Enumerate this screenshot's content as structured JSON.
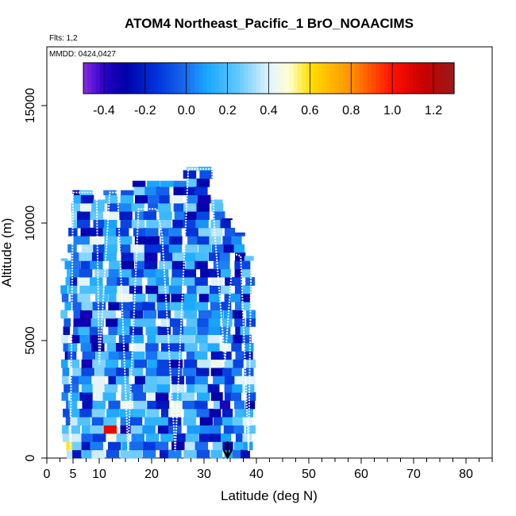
{
  "chart_data": {
    "type": "heatmap",
    "title": "ATOM4 Northeast_Pacific_1 BrO_NOAACIMS",
    "flights_label": "Flts: 1,2",
    "date_label": "MMDD: 0424,0427",
    "xlabel": "Latitude (deg N)",
    "ylabel": "Altitude (m)",
    "xlim": [
      0,
      85
    ],
    "ylim": [
      0,
      17500
    ],
    "x_ticks": [
      0,
      5,
      10,
      20,
      30,
      40,
      50,
      60,
      70,
      80
    ],
    "x_minor_ticks": [
      2.5,
      7.5,
      12.5,
      15,
      17.5,
      22.5,
      25,
      27.5,
      32.5,
      35,
      37.5,
      42.5,
      45,
      47.5,
      52.5,
      55,
      57.5,
      62.5,
      65,
      67.5,
      72.5,
      75,
      77.5,
      82.5,
      85
    ],
    "y_ticks": [
      0,
      5000,
      10000,
      15000
    ],
    "colorbar": {
      "min": -0.5,
      "max": 1.3,
      "ticks": [
        -0.4,
        -0.2,
        0.0,
        0.2,
        0.4,
        0.6,
        0.8,
        1.0,
        1.2
      ],
      "tick_labels": [
        "-0.4",
        "-0.2",
        "0.0",
        "0.2",
        "0.4",
        "0.6",
        "0.8",
        "1.0",
        "1.2"
      ],
      "stops": [
        {
          "value": -0.5,
          "color": "#8a2be2"
        },
        {
          "value": -0.4,
          "color": "#2a00c8"
        },
        {
          "value": -0.3,
          "color": "#0000a8"
        },
        {
          "value": -0.15,
          "color": "#0030d8"
        },
        {
          "value": 0.0,
          "color": "#1a6cf0"
        },
        {
          "value": 0.1,
          "color": "#18a8ff"
        },
        {
          "value": 0.25,
          "color": "#60c8ff"
        },
        {
          "value": 0.4,
          "color": "#e0f2ff"
        },
        {
          "value": 0.5,
          "color": "#ffffd0"
        },
        {
          "value": 0.6,
          "color": "#ffe000"
        },
        {
          "value": 0.8,
          "color": "#ff9000"
        },
        {
          "value": 1.0,
          "color": "#ff1000"
        },
        {
          "value": 1.15,
          "color": "#c80000"
        },
        {
          "value": 1.3,
          "color": "#9a1a1a"
        }
      ]
    },
    "marker": {
      "lat": 34.5,
      "label": "arrow"
    },
    "columns": [
      {
        "lat": 4.0,
        "bottom": 0,
        "top": 8500
      },
      {
        "lat": 5.0,
        "bottom": 0,
        "top": 11400
      },
      {
        "lat": 7.5,
        "bottom": 0,
        "top": 11400
      },
      {
        "lat": 10.0,
        "bottom": 0,
        "top": 11000
      },
      {
        "lat": 12.5,
        "bottom": 0,
        "top": 11400
      },
      {
        "lat": 15.0,
        "bottom": 0,
        "top": 11400
      },
      {
        "lat": 17.5,
        "bottom": 0,
        "top": 11800
      },
      {
        "lat": 20.0,
        "bottom": 0,
        "top": 11800
      },
      {
        "lat": 22.5,
        "bottom": 0,
        "top": 11800
      },
      {
        "lat": 25.0,
        "bottom": 0,
        "top": 11800
      },
      {
        "lat": 27.5,
        "bottom": 0,
        "top": 12400
      },
      {
        "lat": 30.0,
        "bottom": 0,
        "top": 12400
      },
      {
        "lat": 32.5,
        "bottom": 0,
        "top": 11000
      },
      {
        "lat": 34.5,
        "bottom": 0,
        "top": 10200
      },
      {
        "lat": 36.5,
        "bottom": 0,
        "top": 9600
      },
      {
        "lat": 38.5,
        "bottom": 0,
        "top": 8600
      }
    ],
    "hotspots": [
      {
        "lat": 12.5,
        "alt": 1200,
        "value": 1.1
      },
      {
        "lat": 10.0,
        "alt": 3200,
        "value": 0.55
      },
      {
        "lat": 4.0,
        "alt": 500,
        "value": 0.6
      },
      {
        "lat": 23.0,
        "alt": 6200,
        "value": -0.45
      },
      {
        "lat": 34.5,
        "alt": 2200,
        "value": -0.45
      },
      {
        "lat": 33.5,
        "alt": 8700,
        "value": -0.3
      },
      {
        "lat": 22.5,
        "alt": 2200,
        "value": -0.3
      },
      {
        "lat": 37.5,
        "alt": 1200,
        "value": 0.35
      }
    ],
    "flight_track": [
      [
        4.5,
        300
      ],
      [
        5.0,
        11300
      ],
      [
        9.5,
        11300
      ],
      [
        10.0,
        4000
      ],
      [
        12.0,
        11300
      ],
      [
        13.5,
        11300
      ],
      [
        15.5,
        300
      ],
      [
        17.5,
        10600
      ],
      [
        21.0,
        10600
      ],
      [
        22.0,
        9500
      ],
      [
        24.5,
        300
      ],
      [
        27.0,
        12300
      ],
      [
        31.5,
        12300
      ],
      [
        32.0,
        9700
      ],
      [
        34.0,
        4100
      ],
      [
        35.5,
        8700
      ],
      [
        37.0,
        8600
      ],
      [
        38.5,
        300
      ],
      [
        39.0,
        8400
      ]
    ]
  }
}
